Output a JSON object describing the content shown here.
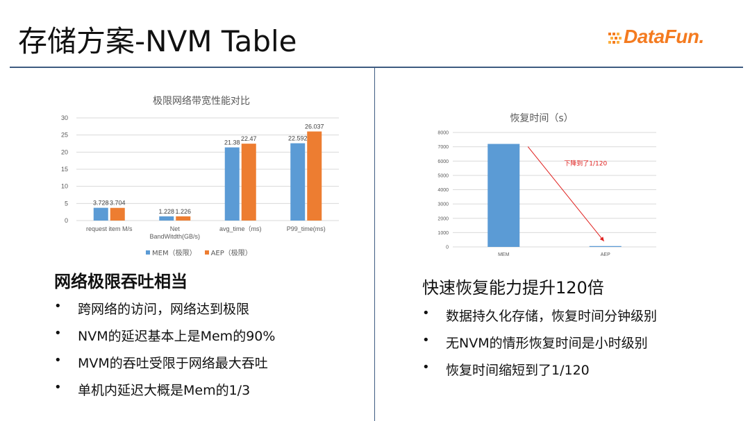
{
  "slide": {
    "title": "存储方案-NVM Table",
    "logo_text": "DataFun.",
    "accent_color": "#f47b20",
    "divider_color": "#3d5a80"
  },
  "left": {
    "heading": "网络极限吞吐相当",
    "bullets": [
      "跨网络的访问，网络达到极限",
      "NVM的延迟基本上是Mem的90%",
      "MVM的吞吐受限于网络最大吞吐",
      "单机内延迟大概是Mem的1/3"
    ]
  },
  "right": {
    "heading": "快速恢复能力提升120倍",
    "bullets": [
      "数据持久化存储，恢复时间分钟级别",
      "无NVM的情形恢复时间是小时级别",
      "恢复时间缩短到了1/120"
    ]
  },
  "chart_data": [
    {
      "type": "bar",
      "title": "极限网络带宽性能对比",
      "categories": [
        "request item M/s",
        "Net BandWitdth(GB/s)",
        "avg_time（ms)",
        "P99_time(ms)"
      ],
      "category_lines": [
        [
          "request item M/s"
        ],
        [
          "Net",
          "BandWitdth(GB/s)"
        ],
        [
          "avg_time（ms)"
        ],
        [
          "P99_time(ms)"
        ]
      ],
      "series": [
        {
          "name": "MEM（极限）",
          "color": "#5b9bd5",
          "values": [
            3.728,
            1.228,
            21.38,
            22.592
          ],
          "labels": [
            "3.728",
            "1.228",
            "21.38",
            "22.592"
          ]
        },
        {
          "name": "AEP（极限）",
          "color": "#ed7d31",
          "values": [
            3.704,
            1.226,
            22.47,
            26.037
          ],
          "labels": [
            "3.704",
            "1.226",
            "22.47",
            "26.037"
          ]
        }
      ],
      "ylim": [
        0,
        30
      ],
      "yticks": [
        "0",
        "5",
        "10",
        "15",
        "20",
        "25",
        "30"
      ],
      "grid": true,
      "legend": "bottom"
    },
    {
      "type": "bar",
      "title": "恢复时间（s）",
      "categories": [
        "MEM",
        "AEP"
      ],
      "series": [
        {
          "color": "#5b9bd5",
          "values": [
            7200,
            60
          ]
        }
      ],
      "ylim": [
        0,
        8000
      ],
      "yticks": [
        "0",
        "1000",
        "2000",
        "3000",
        "4000",
        "5000",
        "6000",
        "7000",
        "8000"
      ],
      "grid": true,
      "annotation": "下降到了1/120",
      "annotation_color": "#e0201e"
    }
  ]
}
